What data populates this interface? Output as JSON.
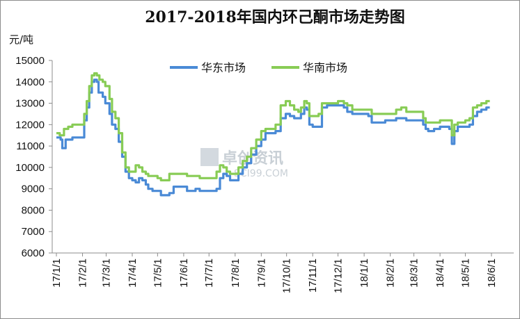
{
  "chart_data": {
    "type": "line",
    "title": "2017-2018年国内环己酮市场走势图",
    "ylabel": "元/吨",
    "xlabel": "",
    "ylim": [
      6000,
      15000
    ],
    "yticks": [
      6000,
      7000,
      8000,
      9000,
      10000,
      11000,
      12000,
      13000,
      14000,
      15000
    ],
    "xticks": [
      "17/1/1",
      "17/2/1",
      "17/3/1",
      "17/4/1",
      "17/5/1",
      "17/6/1",
      "17/7/1",
      "17/8/1",
      "17/9/1",
      "17/10/1",
      "17/11/1",
      "17/12/1",
      "18/1/1",
      "18/2/1",
      "18/3/1",
      "18/4/1",
      "18/5/1",
      "18/6/1"
    ],
    "grid": false,
    "legend_position": "top-center",
    "series": [
      {
        "name": "华东市场",
        "color": "#4a8ad6",
        "points": [
          [
            "2017-01-01",
            11400
          ],
          [
            "2017-01-06",
            11300
          ],
          [
            "2017-01-08",
            10900
          ],
          [
            "2017-01-12",
            11300
          ],
          [
            "2017-01-20",
            11400
          ],
          [
            "2017-01-28",
            11400
          ],
          [
            "2017-02-01",
            11400
          ],
          [
            "2017-02-03",
            12200
          ],
          [
            "2017-02-06",
            12800
          ],
          [
            "2017-02-09",
            13500
          ],
          [
            "2017-02-12",
            14000
          ],
          [
            "2017-02-15",
            14100
          ],
          [
            "2017-02-18",
            14000
          ],
          [
            "2017-02-20",
            13500
          ],
          [
            "2017-02-25",
            13300
          ],
          [
            "2017-02-28",
            13000
          ],
          [
            "2017-03-05",
            12500
          ],
          [
            "2017-03-08",
            12000
          ],
          [
            "2017-03-12",
            11800
          ],
          [
            "2017-03-16",
            11200
          ],
          [
            "2017-03-20",
            10500
          ],
          [
            "2017-03-24",
            9800
          ],
          [
            "2017-03-28",
            9500
          ],
          [
            "2017-04-01",
            9400
          ],
          [
            "2017-04-05",
            9300
          ],
          [
            "2017-04-09",
            9500
          ],
          [
            "2017-04-13",
            9400
          ],
          [
            "2017-04-17",
            9200
          ],
          [
            "2017-04-20",
            9000
          ],
          [
            "2017-04-25",
            8900
          ],
          [
            "2017-05-01",
            8900
          ],
          [
            "2017-05-05",
            8700
          ],
          [
            "2017-05-10",
            8700
          ],
          [
            "2017-05-15",
            8800
          ],
          [
            "2017-05-20",
            9100
          ],
          [
            "2017-05-25",
            9100
          ],
          [
            "2017-06-01",
            9100
          ],
          [
            "2017-06-05",
            8900
          ],
          [
            "2017-06-10",
            8900
          ],
          [
            "2017-06-15",
            9000
          ],
          [
            "2017-06-20",
            8900
          ],
          [
            "2017-06-25",
            8900
          ],
          [
            "2017-07-01",
            8900
          ],
          [
            "2017-07-05",
            8900
          ],
          [
            "2017-07-10",
            9000
          ],
          [
            "2017-07-14",
            9500
          ],
          [
            "2017-07-18",
            9700
          ],
          [
            "2017-07-22",
            9600
          ],
          [
            "2017-07-26",
            9400
          ],
          [
            "2017-08-01",
            9400
          ],
          [
            "2017-08-05",
            9700
          ],
          [
            "2017-08-10",
            10000
          ],
          [
            "2017-08-15",
            10200
          ],
          [
            "2017-08-20",
            10600
          ],
          [
            "2017-08-26",
            11000
          ],
          [
            "2017-09-01",
            11300
          ],
          [
            "2017-09-06",
            11600
          ],
          [
            "2017-09-12",
            11600
          ],
          [
            "2017-09-18",
            11700
          ],
          [
            "2017-09-24",
            12300
          ],
          [
            "2017-09-30",
            12500
          ],
          [
            "2017-10-05",
            12400
          ],
          [
            "2017-10-10",
            12300
          ],
          [
            "2017-10-15",
            12300
          ],
          [
            "2017-10-18",
            12500
          ],
          [
            "2017-10-22",
            12800
          ],
          [
            "2017-10-25",
            12700
          ],
          [
            "2017-10-28",
            12000
          ],
          [
            "2017-11-01",
            11900
          ],
          [
            "2017-11-08",
            11900
          ],
          [
            "2017-11-12",
            12800
          ],
          [
            "2017-11-18",
            12900
          ],
          [
            "2017-11-25",
            12900
          ],
          [
            "2017-12-01",
            12900
          ],
          [
            "2017-12-08",
            12800
          ],
          [
            "2017-12-12",
            12600
          ],
          [
            "2017-12-18",
            12500
          ],
          [
            "2017-12-25",
            12500
          ],
          [
            "2018-01-01",
            12500
          ],
          [
            "2018-01-06",
            12400
          ],
          [
            "2018-01-10",
            12100
          ],
          [
            "2018-01-18",
            12100
          ],
          [
            "2018-01-26",
            12200
          ],
          [
            "2018-02-01",
            12200
          ],
          [
            "2018-02-08",
            12300
          ],
          [
            "2018-02-14",
            12300
          ],
          [
            "2018-02-20",
            12200
          ],
          [
            "2018-03-01",
            12200
          ],
          [
            "2018-03-08",
            12200
          ],
          [
            "2018-03-12",
            12000
          ],
          [
            "2018-03-15",
            11800
          ],
          [
            "2018-03-18",
            11700
          ],
          [
            "2018-03-25",
            11800
          ],
          [
            "2018-04-01",
            11900
          ],
          [
            "2018-04-08",
            11900
          ],
          [
            "2018-04-12",
            11800
          ],
          [
            "2018-04-15",
            11100
          ],
          [
            "2018-04-18",
            11700
          ],
          [
            "2018-04-22",
            11900
          ],
          [
            "2018-04-28",
            11900
          ],
          [
            "2018-05-01",
            11900
          ],
          [
            "2018-05-06",
            12000
          ],
          [
            "2018-05-10",
            12400
          ],
          [
            "2018-05-15",
            12600
          ],
          [
            "2018-05-20",
            12700
          ],
          [
            "2018-05-26",
            12800
          ],
          [
            "2018-05-30",
            12800
          ]
        ]
      },
      {
        "name": "华南市场",
        "color": "#88cc55",
        "points": [
          [
            "2017-01-01",
            11600
          ],
          [
            "2017-01-05",
            11500
          ],
          [
            "2017-01-10",
            11800
          ],
          [
            "2017-01-15",
            11900
          ],
          [
            "2017-01-20",
            12000
          ],
          [
            "2017-01-28",
            12000
          ],
          [
            "2017-02-01",
            12000
          ],
          [
            "2017-02-03",
            12500
          ],
          [
            "2017-02-06",
            13100
          ],
          [
            "2017-02-09",
            13800
          ],
          [
            "2017-02-12",
            14300
          ],
          [
            "2017-02-15",
            14400
          ],
          [
            "2017-02-18",
            14300
          ],
          [
            "2017-02-21",
            14100
          ],
          [
            "2017-02-25",
            14000
          ],
          [
            "2017-02-28",
            13800
          ],
          [
            "2017-03-05",
            13200
          ],
          [
            "2017-03-08",
            12600
          ],
          [
            "2017-03-12",
            12300
          ],
          [
            "2017-03-16",
            11600
          ],
          [
            "2017-03-20",
            10700
          ],
          [
            "2017-03-24",
            10000
          ],
          [
            "2017-03-28",
            9800
          ],
          [
            "2017-04-01",
            9800
          ],
          [
            "2017-04-05",
            10100
          ],
          [
            "2017-04-09",
            10000
          ],
          [
            "2017-04-13",
            9800
          ],
          [
            "2017-04-17",
            9700
          ],
          [
            "2017-04-20",
            9600
          ],
          [
            "2017-04-25",
            9600
          ],
          [
            "2017-05-01",
            9500
          ],
          [
            "2017-05-05",
            9400
          ],
          [
            "2017-05-10",
            9400
          ],
          [
            "2017-05-15",
            9700
          ],
          [
            "2017-05-20",
            9700
          ],
          [
            "2017-05-25",
            9700
          ],
          [
            "2017-06-01",
            9700
          ],
          [
            "2017-06-05",
            9600
          ],
          [
            "2017-06-10",
            9600
          ],
          [
            "2017-06-15",
            9600
          ],
          [
            "2017-06-20",
            9500
          ],
          [
            "2017-06-25",
            9500
          ],
          [
            "2017-07-01",
            9500
          ],
          [
            "2017-07-05",
            9500
          ],
          [
            "2017-07-10",
            9800
          ],
          [
            "2017-07-14",
            10100
          ],
          [
            "2017-07-18",
            10000
          ],
          [
            "2017-07-22",
            9800
          ],
          [
            "2017-07-26",
            9700
          ],
          [
            "2017-08-01",
            9700
          ],
          [
            "2017-08-05",
            10000
          ],
          [
            "2017-08-10",
            10300
          ],
          [
            "2017-08-15",
            10500
          ],
          [
            "2017-08-20",
            10900
          ],
          [
            "2017-08-26",
            11300
          ],
          [
            "2017-09-01",
            11700
          ],
          [
            "2017-09-06",
            11800
          ],
          [
            "2017-09-12",
            11800
          ],
          [
            "2017-09-18",
            12000
          ],
          [
            "2017-09-24",
            12900
          ],
          [
            "2017-09-30",
            13100
          ],
          [
            "2017-10-05",
            12900
          ],
          [
            "2017-10-10",
            12700
          ],
          [
            "2017-10-15",
            12600
          ],
          [
            "2017-10-18",
            12800
          ],
          [
            "2017-10-22",
            13100
          ],
          [
            "2017-10-25",
            13000
          ],
          [
            "2017-10-28",
            12400
          ],
          [
            "2017-11-01",
            12400
          ],
          [
            "2017-11-08",
            12500
          ],
          [
            "2017-11-12",
            13000
          ],
          [
            "2017-11-18",
            13000
          ],
          [
            "2017-11-25",
            13000
          ],
          [
            "2017-12-01",
            13100
          ],
          [
            "2017-12-08",
            13000
          ],
          [
            "2017-12-12",
            12900
          ],
          [
            "2017-12-18",
            12700
          ],
          [
            "2017-12-25",
            12700
          ],
          [
            "2018-01-01",
            12700
          ],
          [
            "2018-01-06",
            12700
          ],
          [
            "2018-01-10",
            12500
          ],
          [
            "2018-01-18",
            12500
          ],
          [
            "2018-01-26",
            12500
          ],
          [
            "2018-02-01",
            12500
          ],
          [
            "2018-02-08",
            12700
          ],
          [
            "2018-02-14",
            12800
          ],
          [
            "2018-02-20",
            12600
          ],
          [
            "2018-03-01",
            12600
          ],
          [
            "2018-03-08",
            12600
          ],
          [
            "2018-03-12",
            12300
          ],
          [
            "2018-03-15",
            12100
          ],
          [
            "2018-03-18",
            12100
          ],
          [
            "2018-03-25",
            12100
          ],
          [
            "2018-04-01",
            12200
          ],
          [
            "2018-04-08",
            12200
          ],
          [
            "2018-04-12",
            12200
          ],
          [
            "2018-04-15",
            11500
          ],
          [
            "2018-04-18",
            12000
          ],
          [
            "2018-04-22",
            12100
          ],
          [
            "2018-04-28",
            12100
          ],
          [
            "2018-05-01",
            12200
          ],
          [
            "2018-05-06",
            12300
          ],
          [
            "2018-05-10",
            12800
          ],
          [
            "2018-05-15",
            12900
          ],
          [
            "2018-05-20",
            13000
          ],
          [
            "2018-05-26",
            13100
          ],
          [
            "2018-05-30",
            13100
          ]
        ]
      }
    ]
  },
  "watermark": {
    "cn": "卓创资讯",
    "en": "SCI99.COM"
  }
}
